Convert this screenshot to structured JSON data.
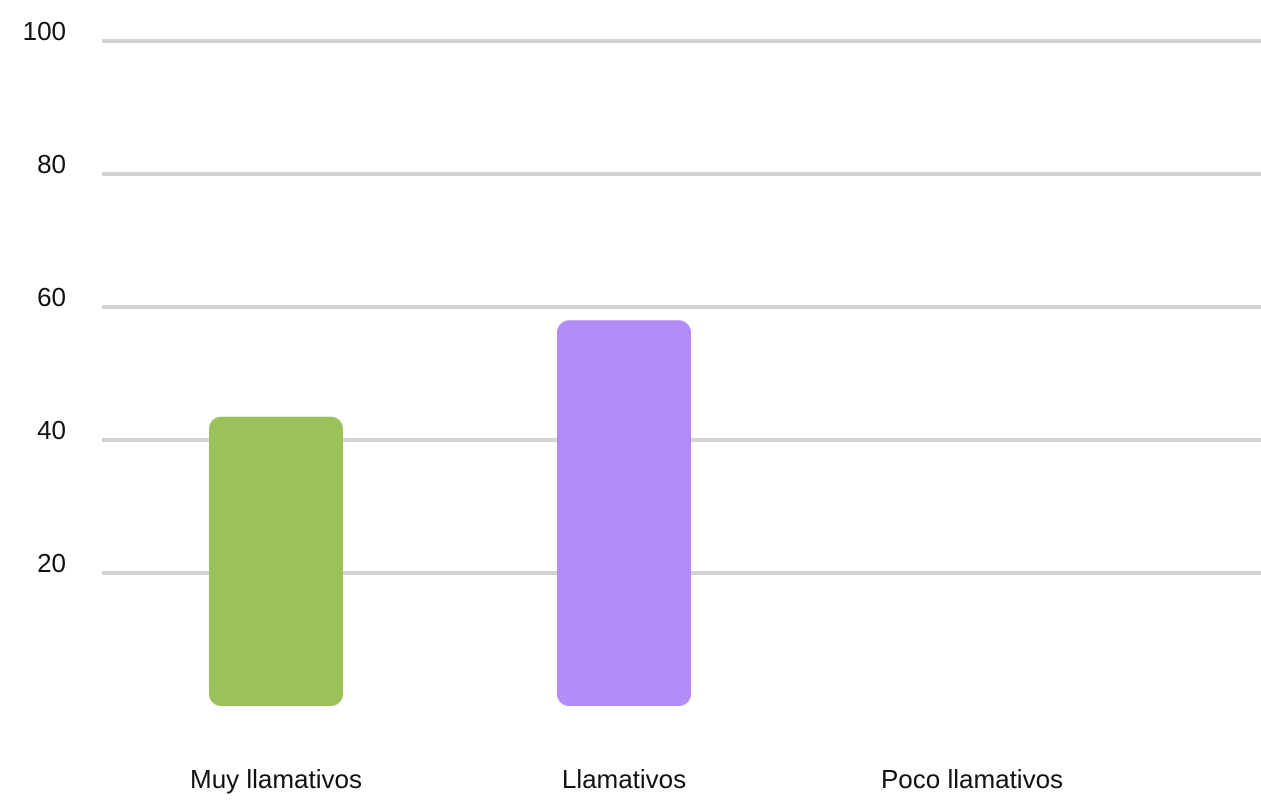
{
  "chart_data": {
    "type": "bar",
    "categories": [
      "Muy llamativos",
      "Llamativos",
      "Poco llamativos"
    ],
    "values": [
      43.5,
      58,
      0
    ],
    "colors": [
      "#9bc25a",
      "#b48cf8",
      "#cccccc"
    ],
    "ylim": [
      0,
      100
    ],
    "yticks": [
      20,
      40,
      60,
      80,
      100
    ],
    "grid": true
  }
}
